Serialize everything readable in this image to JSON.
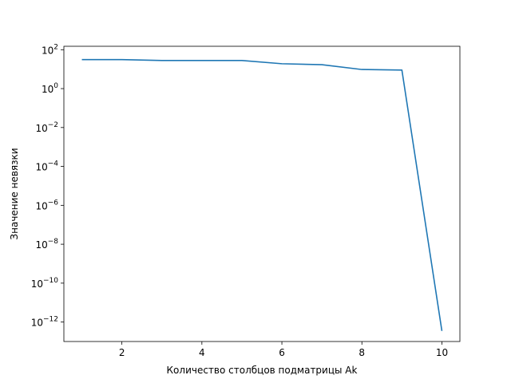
{
  "chart_data": {
    "type": "line",
    "title": "",
    "xlabel": "Количество столбцов подматрицы Ak",
    "ylabel": "Значение невязки",
    "yscale": "log",
    "xlim": [
      0.55,
      10.45
    ],
    "ylim": [
      1e-13,
      150
    ],
    "grid": false,
    "legend": "none",
    "x_ticks": [
      2,
      4,
      6,
      8,
      10
    ],
    "y_ticks": [
      {
        "base": "10",
        "exp": "2",
        "value": 100
      },
      {
        "base": "10",
        "exp": "0",
        "value": 1
      },
      {
        "base": "10",
        "exp": "−2",
        "value": 0.01
      },
      {
        "base": "10",
        "exp": "−4",
        "value": 0.0001
      },
      {
        "base": "10",
        "exp": "−6",
        "value": 1e-06
      },
      {
        "base": "10",
        "exp": "−8",
        "value": 1e-08
      },
      {
        "base": "10",
        "exp": "−10",
        "value": 1e-10
      },
      {
        "base": "10",
        "exp": "−12",
        "value": 1e-12
      }
    ],
    "series": [
      {
        "color": "#1f77b4",
        "x": [
          1,
          2,
          3,
          4,
          5,
          6,
          7,
          8,
          9,
          10
        ],
        "y": [
          31,
          31,
          28,
          28,
          28,
          19,
          17,
          9.6,
          9.0,
          3.5e-13
        ]
      }
    ]
  }
}
